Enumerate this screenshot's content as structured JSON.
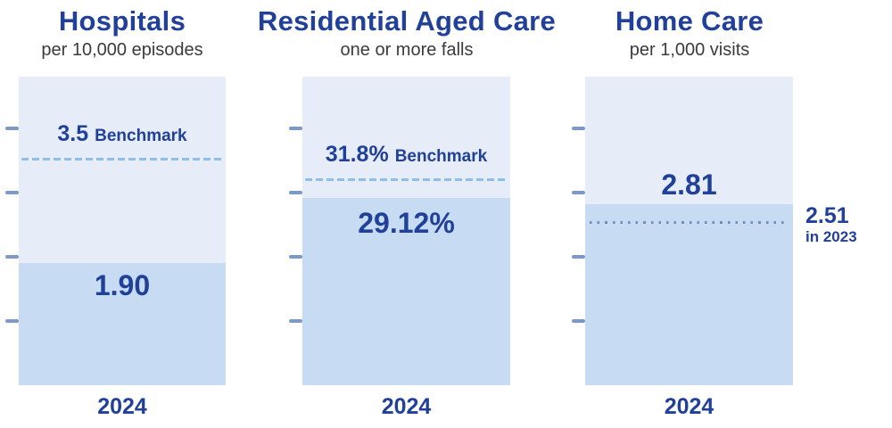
{
  "colors": {
    "navy": "#21409A",
    "subtitle_gray": "#3B3B3B",
    "bar_background": "#E6EDF8",
    "bar_fill": "#C7DCF2",
    "benchmark_dash": "#8FBEE9",
    "prior_dot": "#6D90C1",
    "axis_tick": "#7E9AC4"
  },
  "chart_data": [
    {
      "type": "bar",
      "title": "Hospitals",
      "subtitle": "per 10,000 episodes",
      "category": "2024",
      "value": 1.9,
      "value_label": "1.90",
      "benchmark": 3.5,
      "benchmark_label": "3.5",
      "benchmark_word": "Benchmark",
      "ylim": [
        0,
        4.8
      ],
      "axis_ticks": [
        1,
        2,
        3,
        4
      ],
      "grid": false,
      "legend": false
    },
    {
      "type": "bar",
      "title": "Residential Aged Care",
      "subtitle": "one or more falls",
      "category": "2024",
      "value": 29.12,
      "value_label": "29.12%",
      "benchmark": 31.8,
      "benchmark_label": "31.8%",
      "benchmark_word": "Benchmark",
      "ylim": [
        0,
        48
      ],
      "axis_ticks": [
        10,
        20,
        30,
        40
      ],
      "grid": false,
      "legend": false
    },
    {
      "type": "bar",
      "title": "Home Care",
      "subtitle": "per 1,000 visits",
      "category": "2024",
      "value": 2.81,
      "value_label": "2.81",
      "prior": 2.51,
      "prior_label": "2.51",
      "prior_caption": "in 2023",
      "ylim": [
        0,
        4.8
      ],
      "axis_ticks": [
        1,
        2,
        3,
        4
      ],
      "grid": false,
      "legend": false
    }
  ]
}
